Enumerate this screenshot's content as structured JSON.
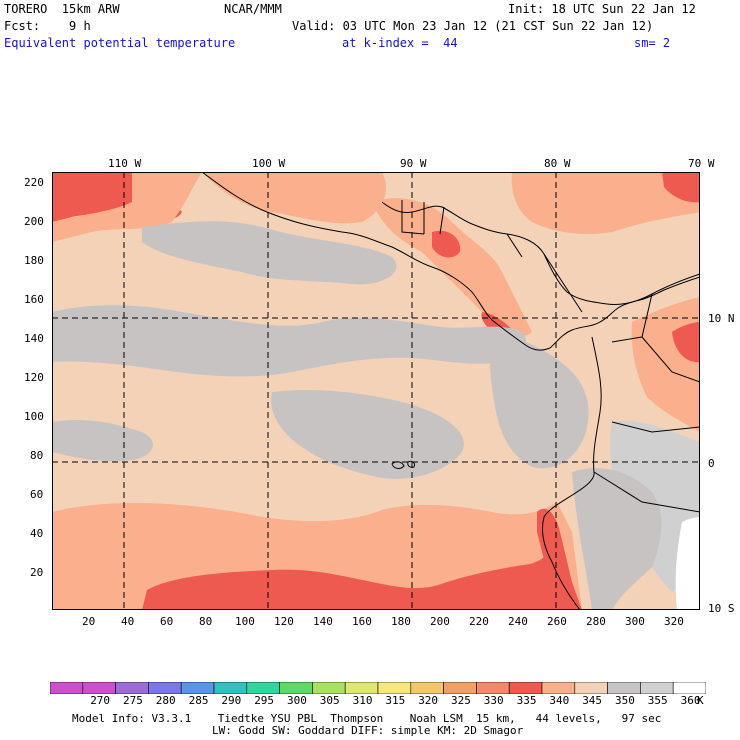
{
  "header": {
    "line1_left": "TORERO  15km ARW",
    "line1_center": "NCAR/MMM",
    "line1_right": "Init: 18 UTC Sun 22 Jan 12",
    "line2_left": "Fcst:    9 h",
    "line2_right": "Valid: 03 UTC Mon 23 Jan 12 (21 CST Sun 22 Jan 12)",
    "field_name": "Equivalent potential temperature",
    "level": "at k-index =  44",
    "smoothing": "sm= 2"
  },
  "map": {
    "top_lon_labels": [
      "110 W",
      "100 W",
      "90 W",
      "80 W",
      "70 W"
    ],
    "right_lat_labels": [
      "10 N",
      "0",
      "10 S"
    ],
    "left_ticks": [
      "220",
      "200",
      "180",
      "160",
      "140",
      "120",
      "100",
      "80",
      "60",
      "40",
      "20"
    ],
    "bottom_ticks": [
      "20",
      "40",
      "60",
      "80",
      "100",
      "120",
      "140",
      "160",
      "180",
      "200",
      "220",
      "240",
      "260",
      "280",
      "300",
      "320"
    ],
    "colors": {
      "c325": "#f2896a",
      "c330": "#ee5a50",
      "c335": "#fab08c",
      "c340": "#f3d2b8",
      "c345": "#ebcfb6",
      "c350": "#c8c3c3",
      "c355": "#d0d0d0",
      "c360": "#ffffff",
      "coast": "#000000",
      "grid": "#000000"
    }
  },
  "colorbar": {
    "labels": [
      "270",
      "275",
      "280",
      "285",
      "290",
      "295",
      "300",
      "305",
      "310",
      "315",
      "320",
      "325",
      "330",
      "335",
      "340",
      "345",
      "350",
      "355",
      "360"
    ],
    "unit": "K",
    "swatches": [
      "#cc50cc",
      "#9d6bd6",
      "#7a78e8",
      "#5a96e8",
      "#33c0c0",
      "#2fd69e",
      "#5fd86a",
      "#a8e060",
      "#dce870",
      "#f6e87a",
      "#f2c86a",
      "#f0a064",
      "#f2896a",
      "#ee5a50",
      "#fab08c",
      "#f3d2b8",
      "#c8c3c3",
      "#d0d0d0",
      "#ffffff"
    ]
  },
  "footer": {
    "line1": "Model Info: V3.3.1    Tiedtke YSU PBL  Thompson    Noah LSM  15 km,   44 levels,   97 sec",
    "line2": "LW: Godd SW: Goddard DIFF: simple KM: 2D Smagor"
  }
}
